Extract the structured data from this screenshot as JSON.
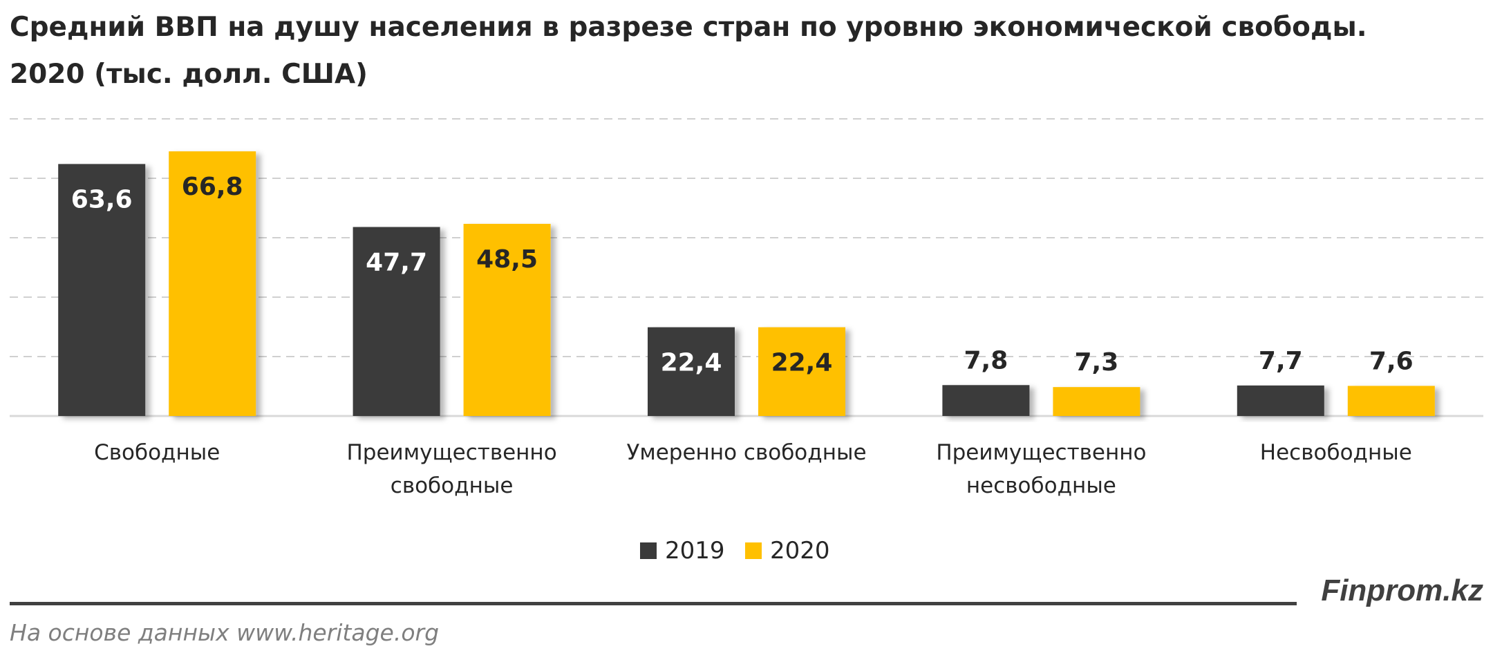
{
  "title": {
    "line1": "Средний ВВП на душу населения в разрезе стран по уровню экономической свободы.",
    "line2": "2020  (тыс. долл. США)"
  },
  "chart_data": {
    "type": "bar",
    "categories": [
      [
        "Свободные"
      ],
      [
        "Преимущественно",
        "свободные"
      ],
      [
        "Умеренно свободные"
      ],
      [
        "Преимущественно",
        "несвободные"
      ],
      [
        "Несвободные"
      ]
    ],
    "series": [
      {
        "name": "2019",
        "color": "#3a3a3a",
        "values": [
          63.6,
          47.7,
          22.4,
          7.8,
          7.7
        ],
        "labels": [
          "63,6",
          "47,7",
          "22,4",
          "7,8",
          "7,7"
        ]
      },
      {
        "name": "2020",
        "color": "#ffc000",
        "values": [
          66.8,
          48.5,
          22.4,
          7.3,
          7.6
        ],
        "labels": [
          "66,8",
          "48,5",
          "22,4",
          "7,3",
          "7,6"
        ]
      }
    ],
    "ylim": [
      0,
      75
    ],
    "gridlines": [
      15,
      30,
      45,
      60,
      75
    ],
    "grid": true,
    "legend": "bottom-center"
  },
  "footer": {
    "brand": "Finprom.kz",
    "source": "На основе данных  www.heritage.org"
  }
}
